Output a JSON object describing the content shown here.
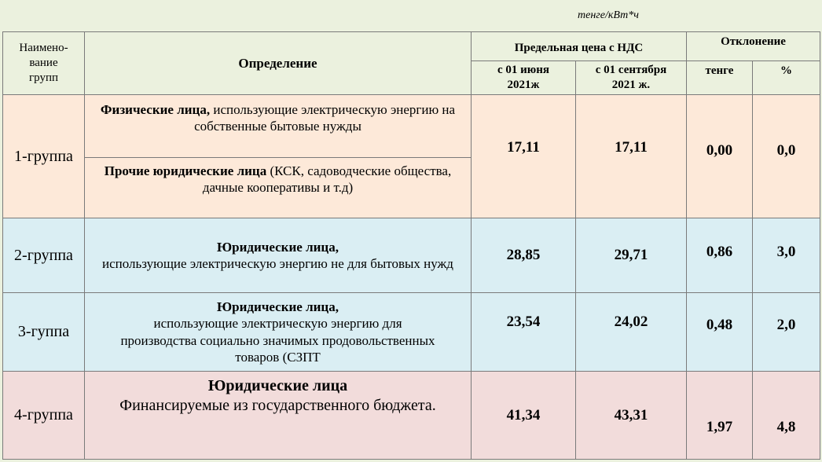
{
  "unit": "тенге/кВт*ч",
  "header": {
    "group": "Наимено-\nвание\nгрупп",
    "definition": "Определение",
    "price": "Предельная цена с НДС",
    "price_june": "с 01 июня\n2021ж",
    "price_sept": "с 01 сентября\n2021 ж.",
    "deviation": "Отклонение",
    "dev_tenge": "тенге",
    "dev_percent": "%"
  },
  "rows": [
    {
      "group": "1-группа",
      "definitions": [
        {
          "bold": "Физические лица,",
          "text": " использующие электрическую энергию на собственные бытовые нужды"
        },
        {
          "bold": "Прочие юридические лица",
          "text": " (КСК,  садоводческие общества, дачные кооперативы и т.д)"
        }
      ],
      "june": "17,11",
      "sept": "17,11",
      "dev_tenge": "0,00",
      "dev_percent": "0,0"
    },
    {
      "group": "2-группа",
      "definitions": [
        {
          "bold": "Юридические лица,",
          "text": "использующие электрическую энергию не для бытовых нужд"
        }
      ],
      "june": "28,85",
      "sept": "29,71",
      "dev_tenge": "0,86",
      "dev_percent": "3,0"
    },
    {
      "group": "3-гуппа",
      "definitions": [
        {
          "bold": "Юридические лица,",
          "text": "использующие электрическую энергию для производства социально значимых продовольственных товаров (СЗПТ"
        }
      ],
      "june": "23,54",
      "sept": "24,02",
      "dev_tenge": "0,48",
      "dev_percent": "2,0"
    },
    {
      "group": "4-группа",
      "definitions": [
        {
          "bold": "Юридические лица",
          "text": "Финансируемые из государственного бюджета."
        }
      ],
      "june": "41,34",
      "sept": "43,31",
      "dev_tenge": "1,97",
      "dev_percent": "4,8"
    }
  ]
}
